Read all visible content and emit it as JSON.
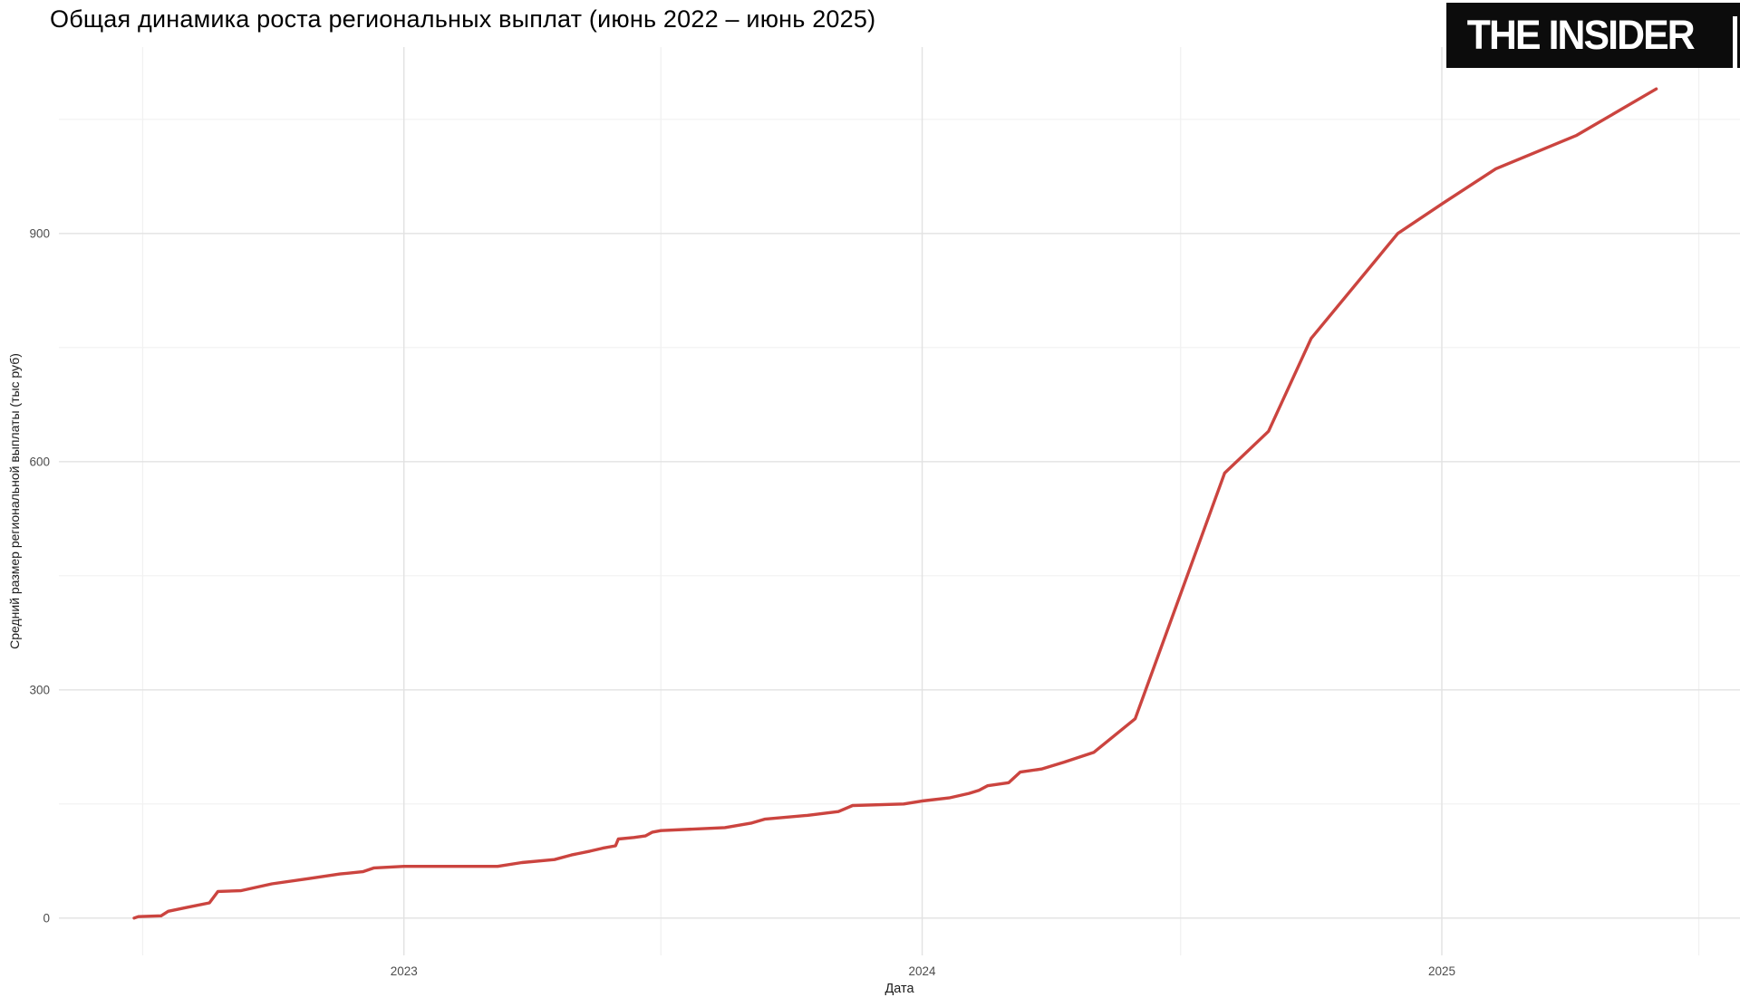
{
  "logo": {
    "text": "THE INSIDER"
  },
  "chart_data": {
    "type": "line",
    "title": "Общая динамика роста региональных выплат (июнь 2022 – июнь 2025)",
    "xlabel": "Дата",
    "ylabel": "Средний размер региональной выплаты (тыс руб)",
    "grid": true,
    "legend": false,
    "x_domain": [
      "2022-05-03",
      "2025-07-30"
    ],
    "y_domain": [
      -49,
      1145
    ],
    "x_ticks": [
      {
        "date": "2023-01-01",
        "label": "2023"
      },
      {
        "date": "2024-01-01",
        "label": "2024"
      },
      {
        "date": "2025-01-01",
        "label": "2025"
      }
    ],
    "x_minor_ticks": [
      "2022-07-01",
      "2023-07-01",
      "2024-07-01",
      "2025-07-01"
    ],
    "y_ticks": [
      {
        "value": 0,
        "label": "0"
      },
      {
        "value": 300,
        "label": "300"
      },
      {
        "value": 600,
        "label": "600"
      },
      {
        "value": 900,
        "label": "900"
      }
    ],
    "y_minor_ticks": [
      150,
      450,
      750,
      1050
    ],
    "series": [
      {
        "color": "#cb443f",
        "stroke_width": 3.4,
        "points": [
          [
            "2022-06-25",
            0
          ],
          [
            "2022-06-28",
            2
          ],
          [
            "2022-07-14",
            3
          ],
          [
            "2022-07-19",
            9
          ],
          [
            "2022-08-01",
            14
          ],
          [
            "2022-08-17",
            20
          ],
          [
            "2022-08-23",
            35
          ],
          [
            "2022-09-08",
            36
          ],
          [
            "2022-09-30",
            45
          ],
          [
            "2022-10-26",
            52
          ],
          [
            "2022-11-17",
            58
          ],
          [
            "2022-12-03",
            61
          ],
          [
            "2022-12-11",
            66
          ],
          [
            "2023-01-01",
            68
          ],
          [
            "2023-03-08",
            68
          ],
          [
            "2023-03-25",
            73
          ],
          [
            "2023-04-17",
            77
          ],
          [
            "2023-04-29",
            83
          ],
          [
            "2023-05-12",
            88
          ],
          [
            "2023-05-21",
            92
          ],
          [
            "2023-05-30",
            95
          ],
          [
            "2023-06-01",
            104
          ],
          [
            "2023-06-12",
            106
          ],
          [
            "2023-06-20",
            108
          ],
          [
            "2023-06-25",
            113
          ],
          [
            "2023-07-01",
            115
          ],
          [
            "2023-08-15",
            119
          ],
          [
            "2023-09-03",
            125
          ],
          [
            "2023-09-12",
            130
          ],
          [
            "2023-10-12",
            135
          ],
          [
            "2023-11-03",
            140
          ],
          [
            "2023-11-13",
            148
          ],
          [
            "2023-12-19",
            150
          ],
          [
            "2024-01-01",
            154
          ],
          [
            "2024-01-20",
            158
          ],
          [
            "2024-02-03",
            164
          ],
          [
            "2024-02-10",
            168
          ],
          [
            "2024-02-16",
            174
          ],
          [
            "2024-03-02",
            178
          ],
          [
            "2024-03-10",
            192
          ],
          [
            "2024-03-25",
            196
          ],
          [
            "2024-04-10",
            205
          ],
          [
            "2024-05-01",
            218
          ],
          [
            "2024-05-30",
            262
          ],
          [
            "2024-08-01",
            585
          ],
          [
            "2024-09-01",
            640
          ],
          [
            "2024-10-01",
            762
          ],
          [
            "2024-12-01",
            900
          ],
          [
            "2025-01-02",
            940
          ],
          [
            "2025-02-08",
            985
          ],
          [
            "2025-04-06",
            1029
          ],
          [
            "2025-06-01",
            1090
          ]
        ]
      }
    ]
  }
}
